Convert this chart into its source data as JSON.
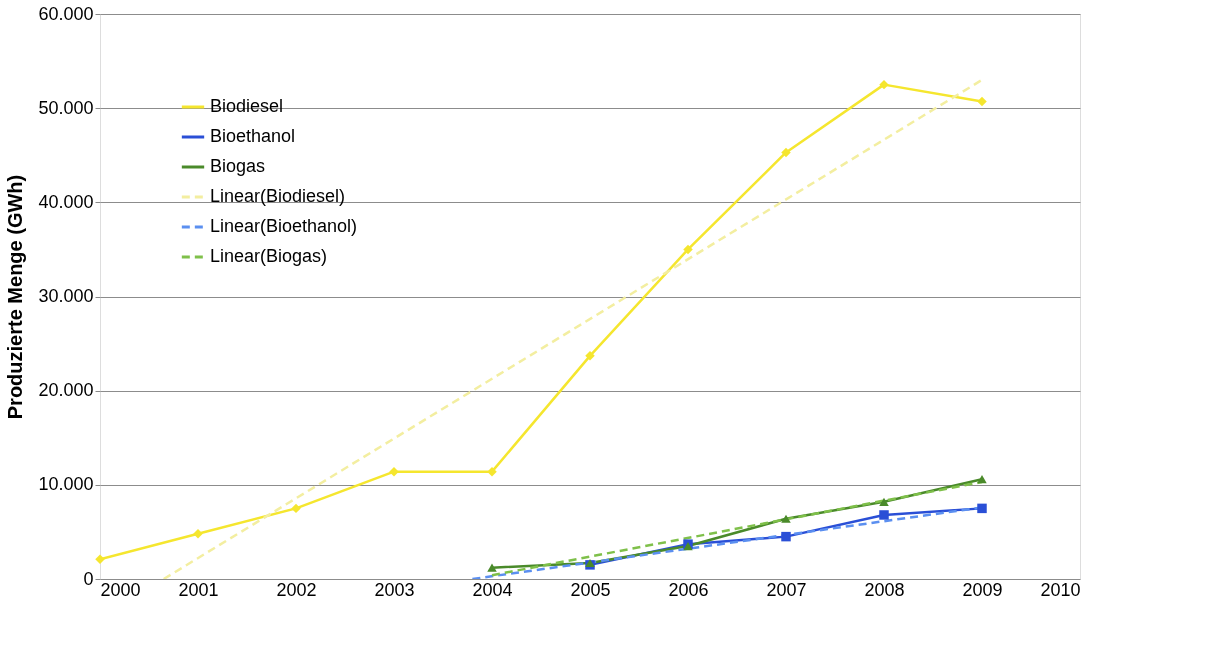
{
  "chart_data": {
    "type": "line",
    "ylabel": "Produzierte Menge (GWh)",
    "xlim": [
      2000,
      2010
    ],
    "xticks": [
      2000,
      2001,
      2002,
      2003,
      2004,
      2005,
      2006,
      2007,
      2008,
      2009,
      2010
    ],
    "ylim": [
      0,
      60000
    ],
    "yticks": [
      {
        "value": 0,
        "label": "0"
      },
      {
        "value": 10000,
        "label": "10.000"
      },
      {
        "value": 20000,
        "label": "20.000"
      },
      {
        "value": 30000,
        "label": "30.000"
      },
      {
        "value": 40000,
        "label": "40.000"
      },
      {
        "value": 50000,
        "label": "50.000"
      },
      {
        "value": 60000,
        "label": "60.000"
      }
    ],
    "grid": "y",
    "legend": "top left",
    "x": [
      2000,
      2001,
      2002,
      2003,
      2004,
      2005,
      2006,
      2007,
      2008,
      2009
    ],
    "series": [
      {
        "name": "Biodiesel",
        "color": "#f5e62e",
        "marker": "diamond",
        "line_style": "solid",
        "values": [
          2100,
          4800,
          7500,
          11400,
          11400,
          23700,
          35000,
          45300,
          52500,
          50700
        ]
      },
      {
        "name": "Bioethanol",
        "color": "#2a4fd6",
        "marker": "square",
        "line_style": "solid",
        "values": [
          null,
          null,
          null,
          null,
          null,
          1500,
          3700,
          4500,
          6800,
          7500
        ]
      },
      {
        "name": "Biogas",
        "color": "#4a8a2a",
        "marker": "triangle",
        "line_style": "solid",
        "values": [
          null,
          null,
          null,
          null,
          1200,
          1700,
          3500,
          6400,
          8200,
          10600
        ]
      },
      {
        "name": "Linear(Biodiesel)",
        "color": "#f3eea0",
        "marker": "none",
        "line_style": "dashed",
        "x": [
          2000.65,
          2009
        ],
        "values": [
          0,
          53000
        ]
      },
      {
        "name": "Linear(Bioethanol)",
        "color": "#5b8ff0",
        "marker": "none",
        "line_style": "dashed",
        "x": [
          2003.8,
          2009
        ],
        "values": [
          0,
          7600
        ]
      },
      {
        "name": "Linear(Biogas)",
        "color": "#7fc04a",
        "marker": "none",
        "line_style": "dashed",
        "x": [
          2004,
          2009
        ],
        "values": [
          400,
          10300
        ]
      }
    ]
  }
}
